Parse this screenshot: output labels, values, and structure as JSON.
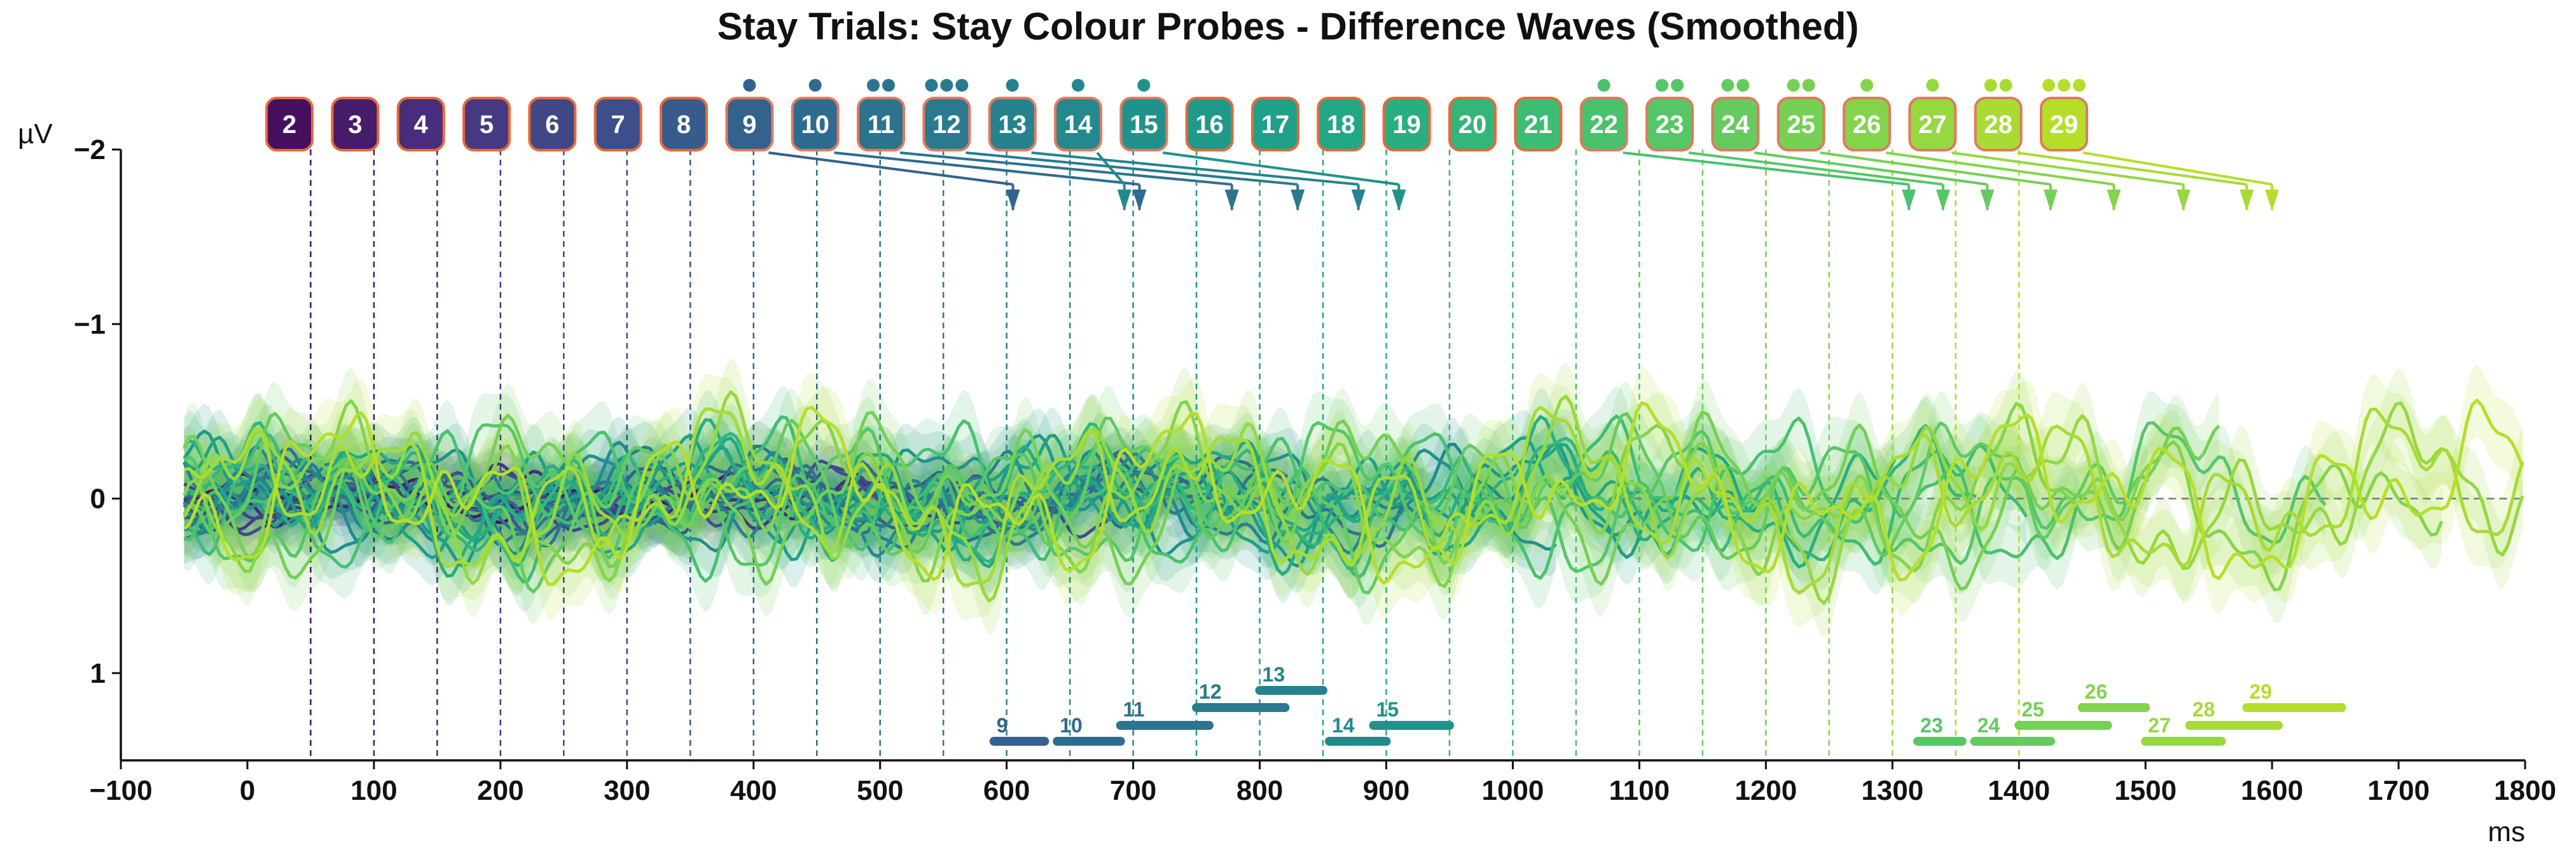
{
  "chart_data": {
    "type": "line",
    "title": "Stay Trials: Stay Colour Probes - Difference Waves (Smoothed)",
    "xlabel": "ms",
    "ylabel": "µV",
    "xlim": [
      -100,
      1800
    ],
    "ylim": [
      1.5,
      -2
    ],
    "y_inverted": true,
    "x_ticks": [
      -100,
      0,
      100,
      200,
      300,
      400,
      500,
      600,
      700,
      800,
      900,
      1000,
      1100,
      1200,
      1300,
      1400,
      1500,
      1600,
      1700,
      1800
    ],
    "y_ticks": [
      -2,
      -1,
      0,
      1
    ],
    "x_tick_labels": [
      "−100",
      "0",
      "100",
      "200",
      "300",
      "400",
      "500",
      "600",
      "700",
      "800",
      "900",
      "1000",
      "1100",
      "1200",
      "1300",
      "1400",
      "1500",
      "1600",
      "1700",
      "1800"
    ],
    "y_tick_labels": [
      "−2",
      "−1",
      "0",
      "1"
    ],
    "zero_line": "dashed",
    "grid": false,
    "colormap": "viridis",
    "probes": [
      {
        "label": "2",
        "onset": 50,
        "color": "#45105e",
        "dots": 0
      },
      {
        "label": "3",
        "onset": 100,
        "color": "#471c6b",
        "dots": 0
      },
      {
        "label": "4",
        "onset": 150,
        "color": "#472d7b",
        "dots": 0
      },
      {
        "label": "5",
        "onset": 200,
        "color": "#453a82",
        "dots": 0
      },
      {
        "label": "6",
        "onset": 250,
        "color": "#404787",
        "dots": 0
      },
      {
        "label": "7",
        "onset": 300,
        "color": "#3c4f8a",
        "dots": 0
      },
      {
        "label": "8",
        "onset": 350,
        "color": "#375b8c",
        "dots": 0
      },
      {
        "label": "9",
        "onset": 400,
        "color": "#33628d",
        "dots": 1
      },
      {
        "label": "10",
        "onset": 450,
        "color": "#2f6b8e",
        "dots": 1
      },
      {
        "label": "11",
        "onset": 500,
        "color": "#2c738e",
        "dots": 2
      },
      {
        "label": "12",
        "onset": 550,
        "color": "#297a8e",
        "dots": 3
      },
      {
        "label": "13",
        "onset": 600,
        "color": "#26828e",
        "dots": 1
      },
      {
        "label": "14",
        "onset": 650,
        "color": "#23898e",
        "dots": 1
      },
      {
        "label": "15",
        "onset": 700,
        "color": "#21918c",
        "dots": 1
      },
      {
        "label": "16",
        "onset": 750,
        "color": "#1f998a",
        "dots": 0
      },
      {
        "label": "17",
        "onset": 800,
        "color": "#1fa088",
        "dots": 0
      },
      {
        "label": "18",
        "onset": 850,
        "color": "#22a785",
        "dots": 0
      },
      {
        "label": "19",
        "onset": 900,
        "color": "#28ae80",
        "dots": 0
      },
      {
        "label": "20",
        "onset": 950,
        "color": "#32b67a",
        "dots": 0
      },
      {
        "label": "21",
        "onset": 1000,
        "color": "#3dbc74",
        "dots": 0
      },
      {
        "label": "22",
        "onset": 1050,
        "color": "#4ac16d",
        "dots": 1
      },
      {
        "label": "23",
        "onset": 1100,
        "color": "#56c667",
        "dots": 2
      },
      {
        "label": "24",
        "onset": 1150,
        "color": "#65cb5e",
        "dots": 2
      },
      {
        "label": "25",
        "onset": 1200,
        "color": "#75d054",
        "dots": 2
      },
      {
        "label": "26",
        "onset": 1250,
        "color": "#84d44b",
        "dots": 1
      },
      {
        "label": "27",
        "onset": 1300,
        "color": "#95d840",
        "dots": 1
      },
      {
        "label": "28",
        "onset": 1350,
        "color": "#a8db34",
        "dots": 2
      },
      {
        "label": "29",
        "onset": 1400,
        "color": "#b5de2b",
        "dots": 3
      }
    ],
    "peak_markers": [
      {
        "probe": "9",
        "latency": 605
      },
      {
        "probe": "10",
        "latency": 705
      },
      {
        "probe": "11",
        "latency": 778
      },
      {
        "probe": "12",
        "latency": 830
      },
      {
        "probe": "13",
        "latency": 878
      },
      {
        "probe": "14",
        "latency": 693
      },
      {
        "probe": "15",
        "latency": 910
      },
      {
        "probe": "22",
        "latency": 1313
      },
      {
        "probe": "23",
        "latency": 1340
      },
      {
        "probe": "24",
        "latency": 1375
      },
      {
        "probe": "25",
        "latency": 1425
      },
      {
        "probe": "26",
        "latency": 1475
      },
      {
        "probe": "27",
        "latency": 1530
      },
      {
        "probe": "28",
        "latency": 1580
      },
      {
        "probe": "29",
        "latency": 1600
      }
    ],
    "significance_bars": [
      {
        "label": "9",
        "start": 590,
        "end": 630,
        "level": 0
      },
      {
        "label": "10",
        "start": 640,
        "end": 690,
        "level": 0
      },
      {
        "label": "11",
        "start": 690,
        "end": 760,
        "level": 1
      },
      {
        "label": "12",
        "start": 750,
        "end": 820,
        "level": 2
      },
      {
        "label": "13",
        "start": 800,
        "end": 850,
        "level": 3
      },
      {
        "label": "14",
        "start": 855,
        "end": 900,
        "level": 0
      },
      {
        "label": "15",
        "start": 890,
        "end": 950,
        "level": 1
      },
      {
        "label": "23",
        "start": 1320,
        "end": 1355,
        "level": 0
      },
      {
        "label": "24",
        "start": 1365,
        "end": 1425,
        "level": 0
      },
      {
        "label": "25",
        "start": 1400,
        "end": 1470,
        "level": 1
      },
      {
        "label": "26",
        "start": 1450,
        "end": 1500,
        "level": 2
      },
      {
        "label": "27",
        "start": 1500,
        "end": 1560,
        "level": 0
      },
      {
        "label": "28",
        "start": 1535,
        "end": 1605,
        "level": 1
      },
      {
        "label": "29",
        "start": 1580,
        "end": 1655,
        "level": 2
      }
    ]
  }
}
